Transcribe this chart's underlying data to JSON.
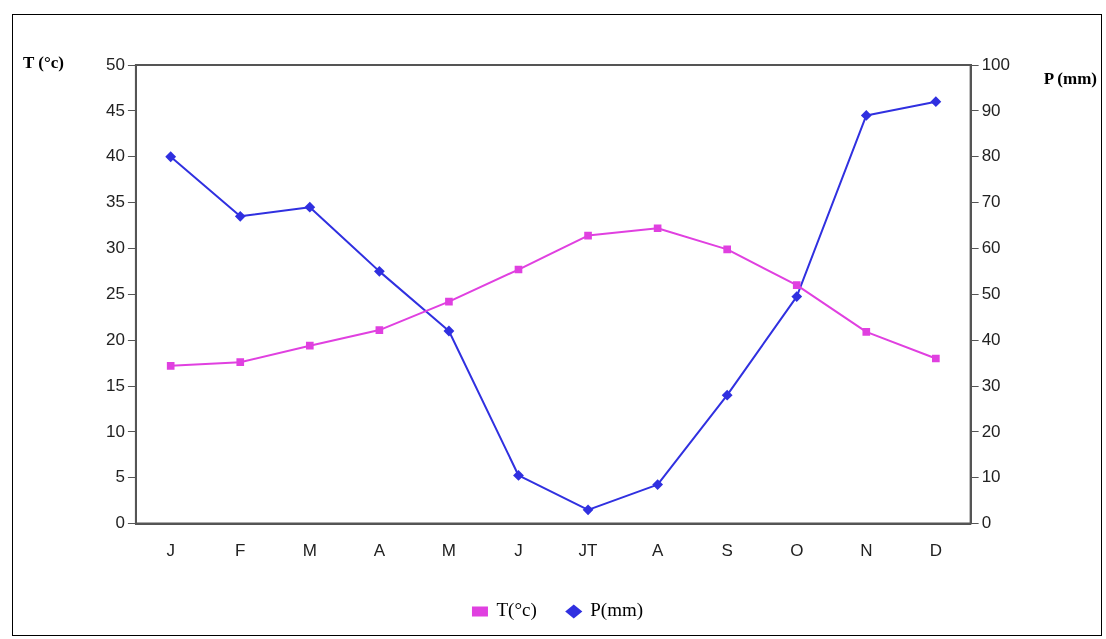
{
  "chart_data": {
    "type": "line",
    "ylabel": "T (°c)",
    "y2label": "P (mm)",
    "categories": [
      "J",
      "F",
      "M",
      "A",
      "M",
      "J",
      "JT",
      "A",
      "S",
      "O",
      "N",
      "D"
    ],
    "series": [
      {
        "name": "T(°c)",
        "color": "#e040e0",
        "marker": "square",
        "values": [
          17.2,
          17.6,
          19.4,
          21.1,
          24.2,
          27.7,
          31.4,
          32.2,
          29.9,
          26.0,
          20.9,
          18.0
        ]
      },
      {
        "name": "P(mm)",
        "color": "#3030e0",
        "marker": "diamond",
        "axis": "y2",
        "values": [
          80,
          67,
          69,
          55,
          42,
          10.5,
          3,
          8.5,
          28,
          49.5,
          89,
          92
        ]
      }
    ],
    "ylim": [
      0,
      50
    ],
    "yticks": [
      0,
      5,
      10,
      15,
      20,
      25,
      30,
      35,
      40,
      45,
      50
    ],
    "y2lim": [
      0,
      100
    ],
    "y2ticks": [
      0,
      10,
      20,
      30,
      40,
      50,
      60,
      70,
      80,
      90,
      100
    ],
    "legend": "bottom",
    "grid": false
  }
}
